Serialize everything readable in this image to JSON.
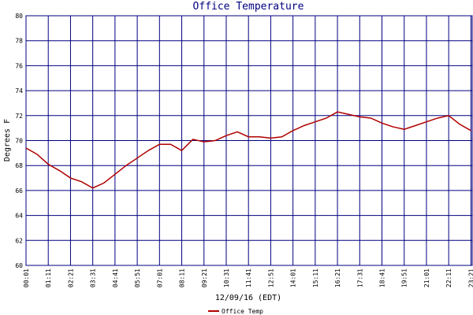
{
  "chart_data": {
    "type": "line",
    "title": "Office Temperature",
    "y_label": "Degrees F",
    "x_label": "12/09/16 (EDT)",
    "x": [
      1,
      36,
      71,
      106,
      141,
      176,
      211,
      246,
      281,
      316,
      351,
      386,
      421,
      456,
      491,
      526,
      561,
      596,
      631,
      666,
      701,
      736,
      771,
      806,
      841,
      876,
      911,
      946,
      981,
      1016,
      1051,
      1086,
      1121,
      1156,
      1191,
      1226,
      1261,
      1296,
      1331,
      1366,
      1401
    ],
    "series": [
      {
        "name": "Office Temp",
        "color": "#b00000",
        "values": [
          69.4,
          68.9,
          68.1,
          67.6,
          67.0,
          66.7,
          66.2,
          66.6,
          67.3,
          68.0,
          68.6,
          69.2,
          69.7,
          69.7,
          69.2,
          70.1,
          69.9,
          70.0,
          70.4,
          70.7,
          70.3,
          70.3,
          70.2,
          70.3,
          70.8,
          71.2,
          71.5,
          71.8,
          72.3,
          72.1,
          71.9,
          71.8,
          71.4,
          71.1,
          70.9,
          71.2,
          71.5,
          71.8,
          72.0,
          71.3,
          70.8
        ]
      }
    ],
    "xlim": [
      1,
      1405
    ],
    "xticks": [
      {
        "value": 1,
        "label": "00:01"
      },
      {
        "value": 71,
        "label": "01:11"
      },
      {
        "value": 141,
        "label": "02:21"
      },
      {
        "value": 211,
        "label": "03:31"
      },
      {
        "value": 281,
        "label": "04:41"
      },
      {
        "value": 351,
        "label": "05:51"
      },
      {
        "value": 421,
        "label": "07:01"
      },
      {
        "value": 491,
        "label": "08:11"
      },
      {
        "value": 561,
        "label": "09:21"
      },
      {
        "value": 631,
        "label": "10:31"
      },
      {
        "value": 701,
        "label": "11:41"
      },
      {
        "value": 771,
        "label": "12:51"
      },
      {
        "value": 841,
        "label": "14:01"
      },
      {
        "value": 911,
        "label": "15:11"
      },
      {
        "value": 981,
        "label": "16:21"
      },
      {
        "value": 1051,
        "label": "17:31"
      },
      {
        "value": 1121,
        "label": "18:41"
      },
      {
        "value": 1191,
        "label": "19:51"
      },
      {
        "value": 1261,
        "label": "21:01"
      },
      {
        "value": 1331,
        "label": "22:11"
      },
      {
        "value": 1401,
        "label": "23:21"
      }
    ],
    "ylim": [
      60,
      80
    ],
    "yticks": [
      60,
      62,
      64,
      66,
      68,
      70,
      72,
      74,
      76,
      78,
      80
    ],
    "grid": true,
    "grid_color": "#000080"
  }
}
